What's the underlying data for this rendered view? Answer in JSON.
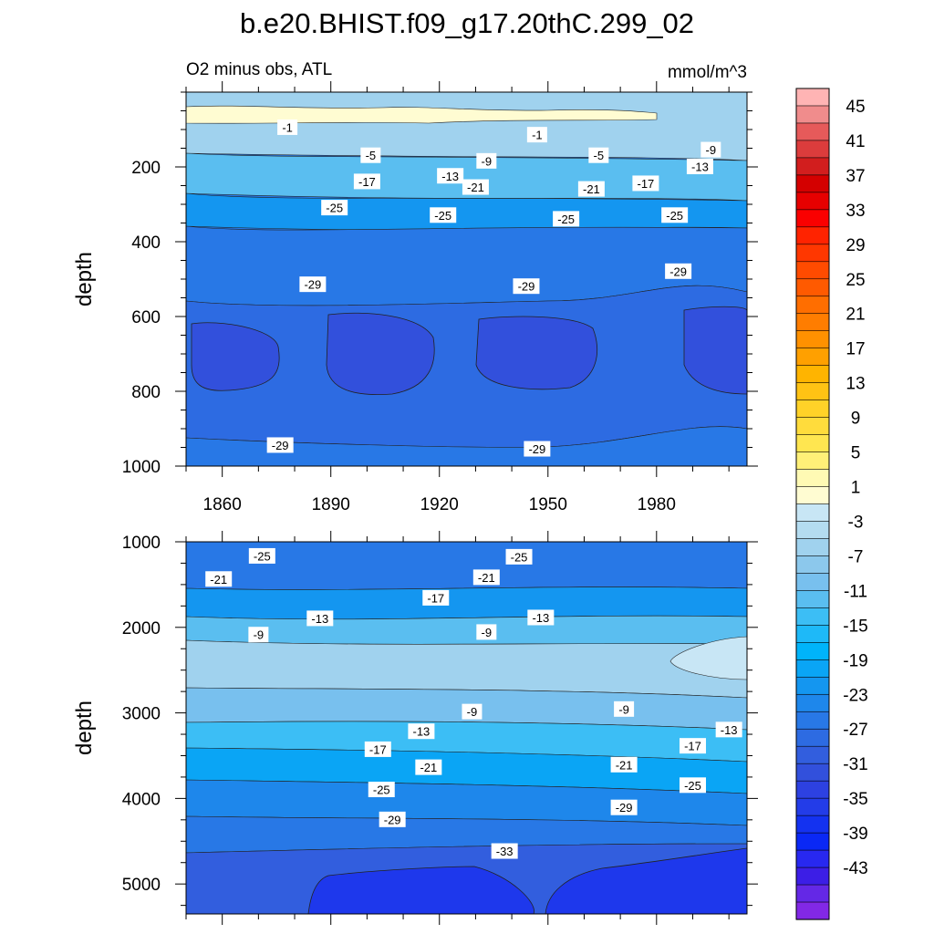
{
  "chart_data": {
    "type": "contour",
    "title": "b.e20.BHIST.f09_g17.20thC.299_02",
    "subtitle_left": "O2 minus obs, ATL",
    "units": "mmol/m^3",
    "xlabel": "",
    "ylabel": "depth",
    "x_range": [
      1850,
      2005
    ],
    "x_ticks": [
      1860,
      1890,
      1920,
      1950,
      1980
    ],
    "x_tick_labels": [
      "1860",
      "1890",
      "1920",
      "1950",
      "1980"
    ],
    "panels": [
      {
        "name": "upper",
        "ylim": [
          0,
          1000
        ],
        "y_ticks": [
          200,
          400,
          600,
          800,
          1000
        ],
        "y_tick_labels": [
          "200",
          "400",
          "600",
          "800",
          "1000"
        ],
        "show_x_labels": true,
        "contour_labels": [
          {
            "x": 1878,
            "y": 95,
            "text": "-1"
          },
          {
            "x": 1947,
            "y": 115,
            "text": "-1"
          },
          {
            "x": 1901,
            "y": 170,
            "text": "-5"
          },
          {
            "x": 1923,
            "y": 225,
            "text": "-13"
          },
          {
            "x": 1933,
            "y": 185,
            "text": "-9"
          },
          {
            "x": 1900,
            "y": 240,
            "text": "-17"
          },
          {
            "x": 1930,
            "y": 255,
            "text": "-21"
          },
          {
            "x": 1964,
            "y": 170,
            "text": "-5"
          },
          {
            "x": 1995,
            "y": 155,
            "text": "-9"
          },
          {
            "x": 1992,
            "y": 200,
            "text": "-13"
          },
          {
            "x": 1977,
            "y": 245,
            "text": "-17"
          },
          {
            "x": 1962,
            "y": 260,
            "text": "-21"
          },
          {
            "x": 1891,
            "y": 310,
            "text": "-25"
          },
          {
            "x": 1921,
            "y": 330,
            "text": "-25"
          },
          {
            "x": 1955,
            "y": 340,
            "text": "-25"
          },
          {
            "x": 1985,
            "y": 330,
            "text": "-25"
          },
          {
            "x": 1885,
            "y": 515,
            "text": "-29"
          },
          {
            "x": 1944,
            "y": 520,
            "text": "-29"
          },
          {
            "x": 1986,
            "y": 480,
            "text": "-29"
          },
          {
            "x": 1876,
            "y": 945,
            "text": "-29"
          },
          {
            "x": 1947,
            "y": 955,
            "text": "-29"
          }
        ]
      },
      {
        "name": "lower",
        "ylim": [
          1000,
          5350
        ],
        "y_ticks": [
          1000,
          2000,
          3000,
          4000,
          5000
        ],
        "y_tick_labels": [
          "1000",
          "2000",
          "3000",
          "4000",
          "5000"
        ],
        "show_x_labels": false,
        "contour_labels": [
          {
            "x": 1871,
            "y": 1170,
            "text": "-25"
          },
          {
            "x": 1859,
            "y": 1440,
            "text": "-21"
          },
          {
            "x": 1870,
            "y": 2090,
            "text": "-9"
          },
          {
            "x": 1887,
            "y": 1900,
            "text": "-13"
          },
          {
            "x": 1919,
            "y": 1660,
            "text": "-17"
          },
          {
            "x": 1933,
            "y": 1420,
            "text": "-21"
          },
          {
            "x": 1942,
            "y": 1180,
            "text": "-25"
          },
          {
            "x": 1948,
            "y": 1890,
            "text": "-13"
          },
          {
            "x": 1933,
            "y": 2060,
            "text": "-9"
          },
          {
            "x": 1929,
            "y": 2990,
            "text": "-9"
          },
          {
            "x": 1915,
            "y": 3220,
            "text": "-13"
          },
          {
            "x": 1903,
            "y": 3430,
            "text": "-17"
          },
          {
            "x": 1917,
            "y": 3640,
            "text": "-21"
          },
          {
            "x": 1904,
            "y": 3900,
            "text": "-25"
          },
          {
            "x": 1907,
            "y": 4250,
            "text": "-29"
          },
          {
            "x": 1938,
            "y": 4620,
            "text": "-33"
          },
          {
            "x": 1971,
            "y": 2960,
            "text": "-9"
          },
          {
            "x": 2000,
            "y": 3200,
            "text": "-13"
          },
          {
            "x": 1990,
            "y": 3390,
            "text": "-17"
          },
          {
            "x": 1971,
            "y": 3610,
            "text": "-21"
          },
          {
            "x": 1990,
            "y": 3850,
            "text": "-25"
          },
          {
            "x": 1971,
            "y": 4110,
            "text": "-29"
          }
        ]
      }
    ],
    "colorbar": {
      "levels": [
        47,
        45,
        43,
        41,
        39,
        37,
        35,
        33,
        31,
        29,
        27,
        25,
        23,
        21,
        19,
        17,
        15,
        13,
        11,
        9,
        7,
        5,
        3,
        1,
        -1,
        -3,
        -5,
        -7,
        -9,
        -11,
        -13,
        -15,
        -17,
        -19,
        -21,
        -23,
        -25,
        -27,
        -29,
        -31,
        -33,
        -35,
        -37,
        -39,
        -41,
        -43,
        -45
      ],
      "labels": [
        "45",
        "41",
        "37",
        "33",
        "29",
        "25",
        "21",
        "17",
        "13",
        "9",
        "5",
        "1",
        "-3",
        "-7",
        "-11",
        "-15",
        "-19",
        "-23",
        "-27",
        "-31",
        "-35",
        "-39",
        "-43"
      ],
      "colors": [
        "#ffb4b4",
        "#f08c8c",
        "#e65a5a",
        "#dc3c3c",
        "#d21e1e",
        "#d40000",
        "#e60000",
        "#fa0000",
        "#ff2300",
        "#ff3700",
        "#ff4b00",
        "#ff5a00",
        "#ff6e00",
        "#ff7d00",
        "#ff9100",
        "#ffa000",
        "#ffb400",
        "#ffc314",
        "#ffd228",
        "#ffdc3c",
        "#ffe650",
        "#fff078",
        "#fffab4",
        "#fffcd2",
        "#c8e6f5",
        "#b4dcf0",
        "#a0d2ee",
        "#8cc8ec",
        "#78c0ee",
        "#5abef0",
        "#3cbef5",
        "#1eb9f8",
        "#00b4fa",
        "#0aa5f5",
        "#1496f0",
        "#1e87eb",
        "#2878e6",
        "#2d6be2",
        "#325ede",
        "#3250dc",
        "#2d41e1",
        "#233ce8",
        "#1432f0",
        "#0a28f5",
        "#2828f0",
        "#3c1ee6",
        "#6428e6",
        "#8228e6"
      ]
    }
  }
}
